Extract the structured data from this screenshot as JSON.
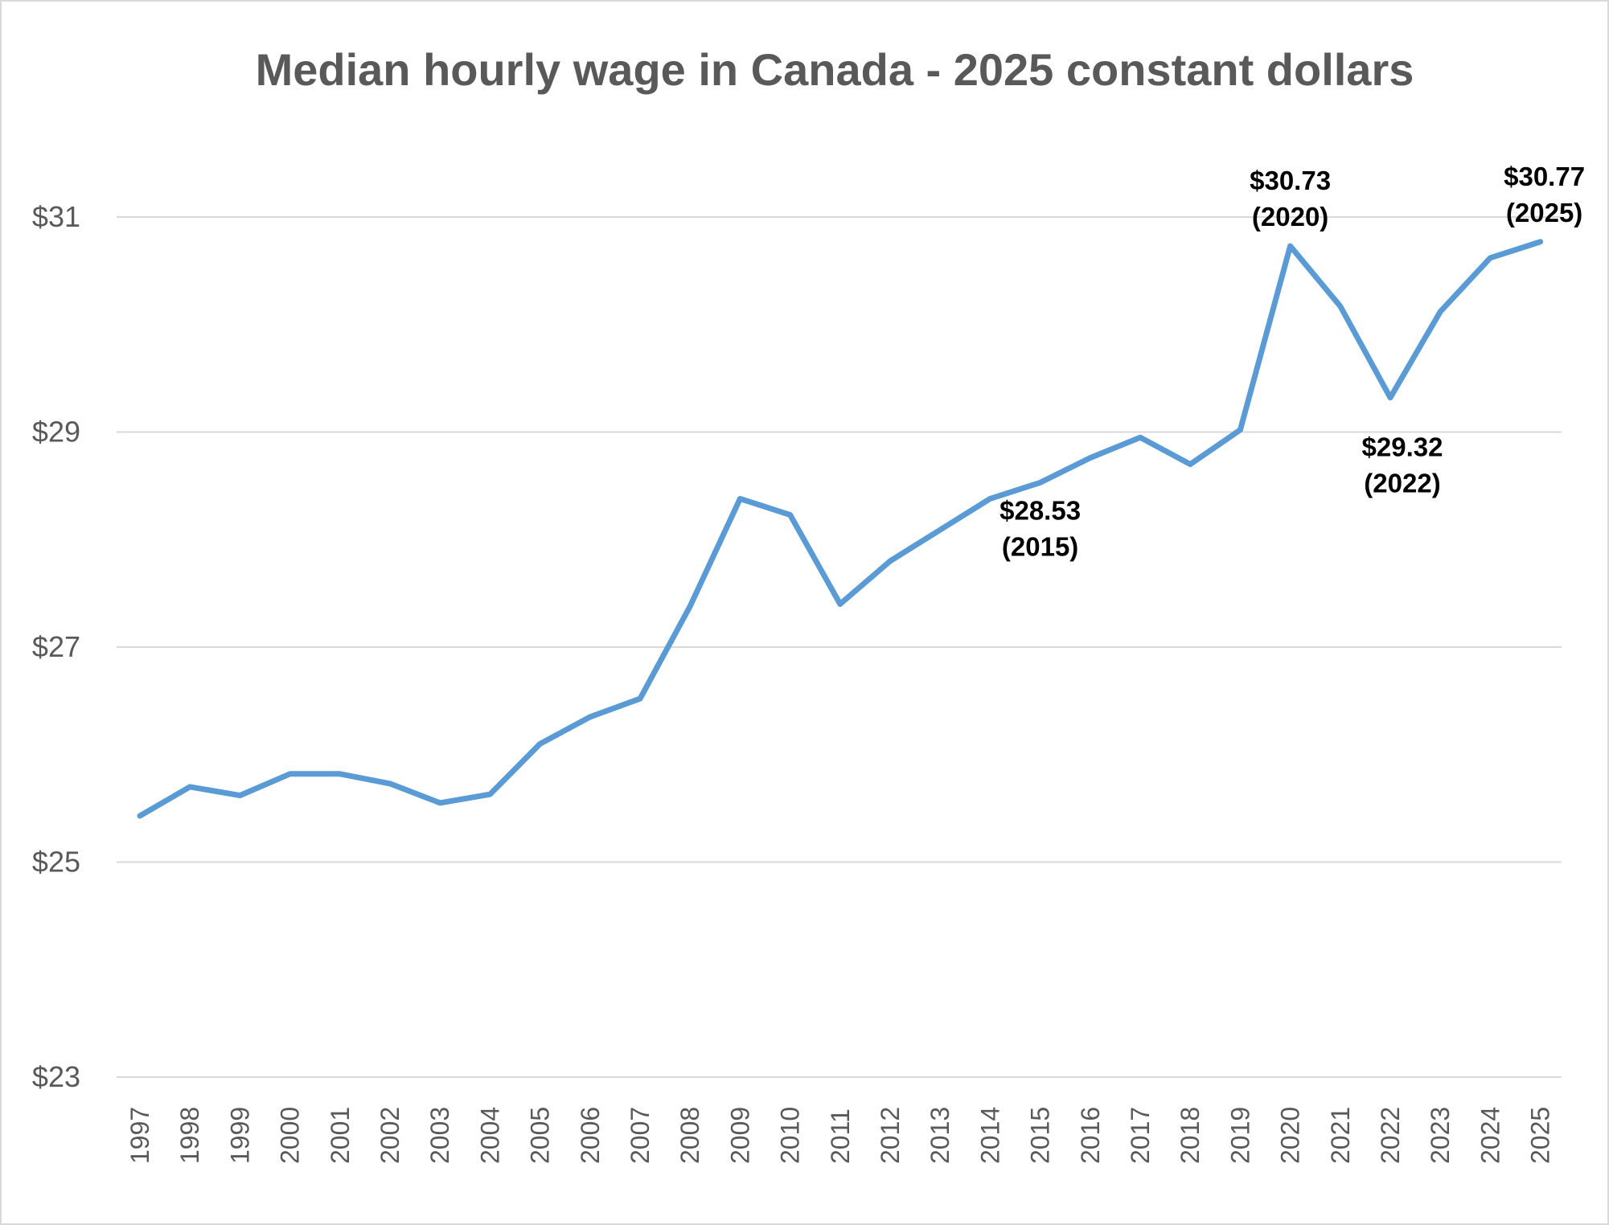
{
  "chart_data": {
    "type": "line",
    "title": "Median hourly wage in Canada - 2025 constant dollars",
    "xlabel": "",
    "ylabel": "",
    "ylim": [
      23,
      31
    ],
    "y_ticks": [
      {
        "value": 31,
        "label": "$31"
      },
      {
        "value": 29,
        "label": "$29"
      },
      {
        "value": 27,
        "label": "$27"
      },
      {
        "value": 25,
        "label": "$25"
      },
      {
        "value": 23,
        "label": "$23"
      }
    ],
    "grid": true,
    "legend": "none",
    "series_color": "#5b9bd5",
    "categories": [
      "1997",
      "1998",
      "1999",
      "2000",
      "2001",
      "2002",
      "2003",
      "2004",
      "2005",
      "2006",
      "2007",
      "2008",
      "2009",
      "2010",
      "2011",
      "2012",
      "2013",
      "2014",
      "2015",
      "2016",
      "2017",
      "2018",
      "2019",
      "2020",
      "2021",
      "2022",
      "2023",
      "2024",
      "2025"
    ],
    "series": [
      {
        "values": [
          25.43,
          25.7,
          25.62,
          25.82,
          25.82,
          25.73,
          25.55,
          25.63,
          26.1,
          26.35,
          26.52,
          27.38,
          28.38,
          28.23,
          27.4,
          27.8,
          28.09,
          28.38,
          28.53,
          28.76,
          28.95,
          28.7,
          29.02,
          30.73,
          30.17,
          29.32,
          30.12,
          30.62,
          30.77
        ]
      }
    ],
    "annotations": [
      {
        "x": "2015",
        "value_label": "$28.53",
        "year_label": "(2015)"
      },
      {
        "x": "2020",
        "value_label": "$30.73",
        "year_label": "(2020)"
      },
      {
        "x": "2022",
        "value_label": "$29.32",
        "year_label": "(2022)"
      },
      {
        "x": "2025",
        "value_label": "$30.77",
        "year_label": "(2025)"
      }
    ]
  }
}
